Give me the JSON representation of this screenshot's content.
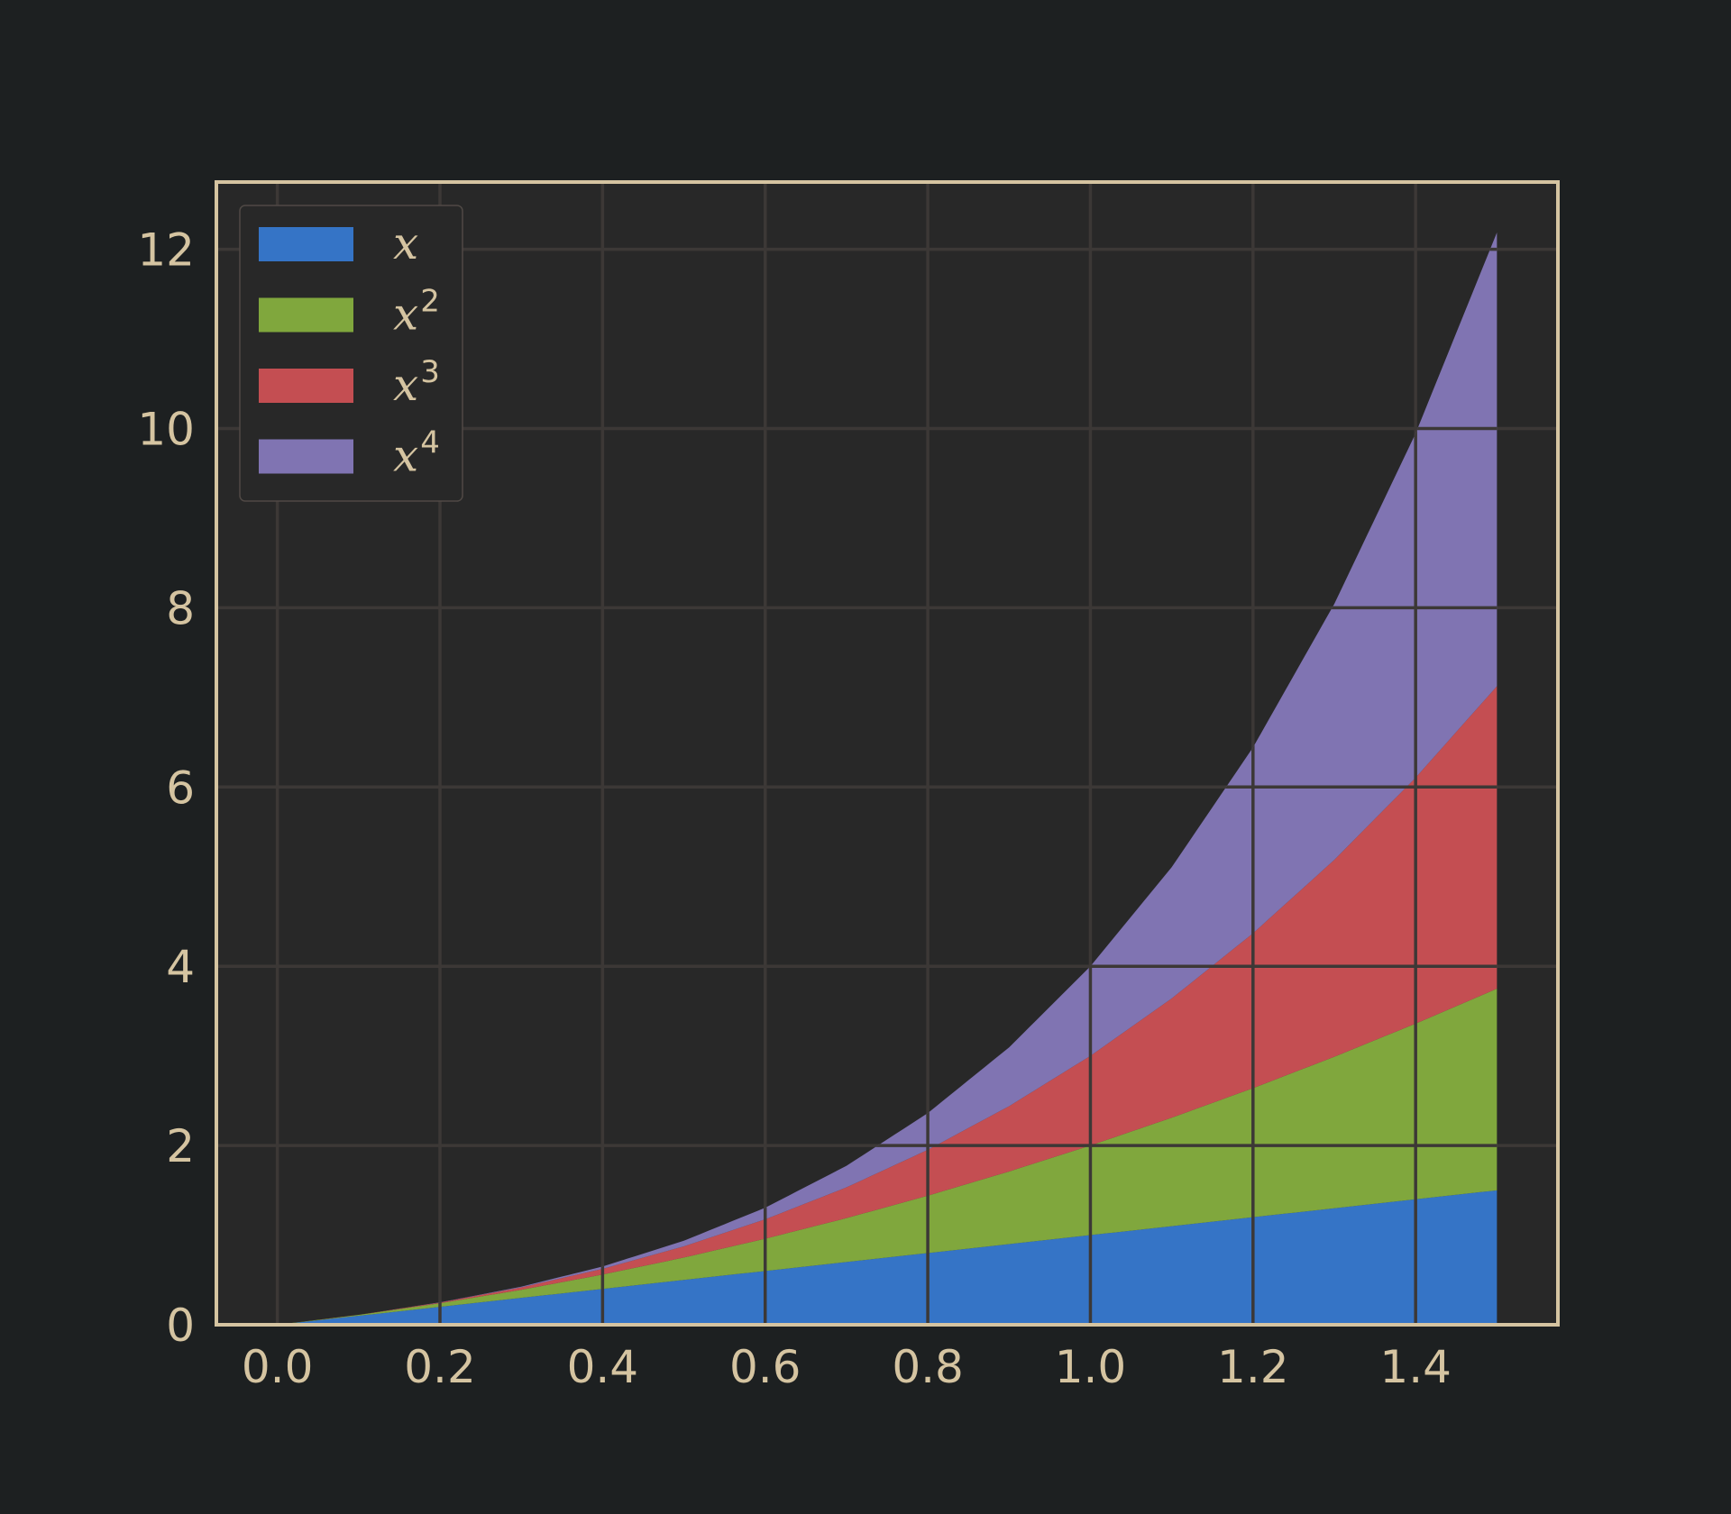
{
  "chart_data": {
    "type": "area",
    "stacked": true,
    "xlim": [
      -0.075,
      1.575
    ],
    "ylim": [
      0,
      12.75
    ],
    "xticks": [
      0.0,
      0.2,
      0.4,
      0.6,
      0.8,
      1.0,
      1.2,
      1.4
    ],
    "xtick_labels": [
      "0.0",
      "0.2",
      "0.4",
      "0.6",
      "0.8",
      "1.0",
      "1.2",
      "1.4"
    ],
    "yticks": [
      0,
      2,
      4,
      6,
      8,
      10,
      12
    ],
    "ytick_labels": [
      "0",
      "2",
      "4",
      "6",
      "8",
      "10",
      "12"
    ],
    "grid": true,
    "legend_position": "top-left",
    "x": [
      0,
      0.1,
      0.2,
      0.3,
      0.4,
      0.5,
      0.6,
      0.7,
      0.8,
      0.9,
      1.0,
      1.1,
      1.2,
      1.3,
      1.4,
      1.5
    ],
    "series": [
      {
        "name": "x",
        "base": "x",
        "exp": "",
        "color": "#3574c6",
        "values": [
          0,
          0.1,
          0.2,
          0.3,
          0.4,
          0.5,
          0.6,
          0.7,
          0.8,
          0.9,
          1.0,
          1.1,
          1.2,
          1.3,
          1.4,
          1.5
        ]
      },
      {
        "name": "x2",
        "base": "x",
        "exp": "2",
        "color": "#80a73d",
        "values": [
          0,
          0.01,
          0.04,
          0.09,
          0.16,
          0.25,
          0.36,
          0.49,
          0.64,
          0.81,
          1.0,
          1.21,
          1.44,
          1.69,
          1.96,
          2.25
        ]
      },
      {
        "name": "x3",
        "base": "x",
        "exp": "3",
        "color": "#c44e52",
        "values": [
          0,
          0.001,
          0.008,
          0.027,
          0.064,
          0.125,
          0.216,
          0.343,
          0.512,
          0.729,
          1.0,
          1.331,
          1.728,
          2.197,
          2.744,
          3.375
        ]
      },
      {
        "name": "x4",
        "base": "x",
        "exp": "4",
        "color": "#8074b2",
        "values": [
          0,
          0.0001,
          0.0016,
          0.0081,
          0.0256,
          0.0625,
          0.1296,
          0.2401,
          0.4096,
          0.6561,
          1.0,
          1.4641,
          2.0736,
          2.8561,
          3.8416,
          5.0625
        ]
      }
    ]
  },
  "colors": {
    "background": "#1d2021",
    "plot_background": "#282828",
    "axes_edge": "#d5c4a1",
    "grid": "#3c3836",
    "text": "#d5c4a1"
  }
}
